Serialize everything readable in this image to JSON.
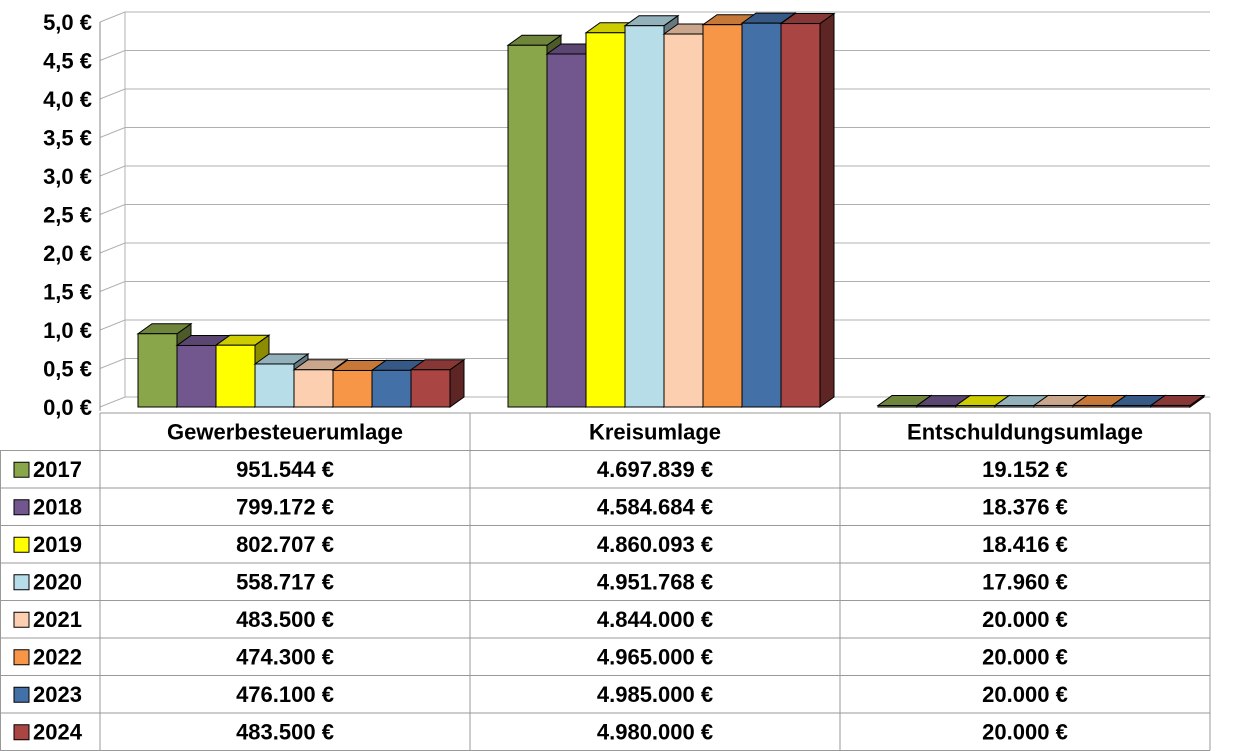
{
  "chart_data": {
    "type": "bar3d",
    "categories": [
      "Gewerbesteuerumlage",
      "Kreisumlage",
      "Entschuldungsumlage"
    ],
    "ylim": [
      0,
      5
    ],
    "yticks": [
      {
        "value": 0,
        "label": "0,0 €"
      },
      {
        "value": 0.5,
        "label": "0,5 €"
      },
      {
        "value": 1,
        "label": "1,0 €"
      },
      {
        "value": 1.5,
        "label": "1,5 €"
      },
      {
        "value": 2,
        "label": "2,0 €"
      },
      {
        "value": 2.5,
        "label": "2,5 €"
      },
      {
        "value": 3,
        "label": "3,0 €"
      },
      {
        "value": 3.5,
        "label": "3,5 €"
      },
      {
        "value": 4,
        "label": "4,0 €"
      },
      {
        "value": 4.5,
        "label": "4,5 €"
      },
      {
        "value": 5,
        "label": "5,0 €"
      }
    ],
    "grid": true,
    "series": [
      {
        "name": "2017",
        "color": "#8aa64a",
        "values": [
          0.951544,
          4.697839,
          0.019152
        ],
        "value_labels": [
          "951.544 €",
          "4.697.839 €",
          "19.152 €"
        ]
      },
      {
        "name": "2018",
        "color": "#72578f",
        "values": [
          0.799172,
          4.584684,
          0.018376
        ],
        "value_labels": [
          "799.172 €",
          "4.584.684 €",
          "18.376 €"
        ]
      },
      {
        "name": "2019",
        "color": "#ffff00",
        "values": [
          0.802707,
          4.860093,
          0.018416
        ],
        "value_labels": [
          "802.707 €",
          "4.860.093 €",
          "18.416 €"
        ]
      },
      {
        "name": "2020",
        "color": "#b7dde8",
        "values": [
          0.558717,
          4.951768,
          0.01796
        ],
        "value_labels": [
          "558.717 €",
          "4.951.768 €",
          "17.960 €"
        ]
      },
      {
        "name": "2021",
        "color": "#fbcfaf",
        "values": [
          0.4835,
          4.844,
          0.02
        ],
        "value_labels": [
          "483.500 €",
          "4.844.000 €",
          "20.000 €"
        ]
      },
      {
        "name": "2022",
        "color": "#f79646",
        "values": [
          0.4743,
          4.965,
          0.02
        ],
        "value_labels": [
          "474.300 €",
          "4.965.000 €",
          "20.000 €"
        ]
      },
      {
        "name": "2023",
        "color": "#4370a6",
        "values": [
          0.4761,
          4.985,
          0.02
        ],
        "value_labels": [
          "476.100 €",
          "4.985.000 €",
          "20.000 €"
        ]
      },
      {
        "name": "2024",
        "color": "#a94543",
        "values": [
          0.4835,
          4.98,
          0.02
        ],
        "value_labels": [
          "483.500 €",
          "4.980.000 €",
          "20.000 €"
        ]
      }
    ]
  }
}
